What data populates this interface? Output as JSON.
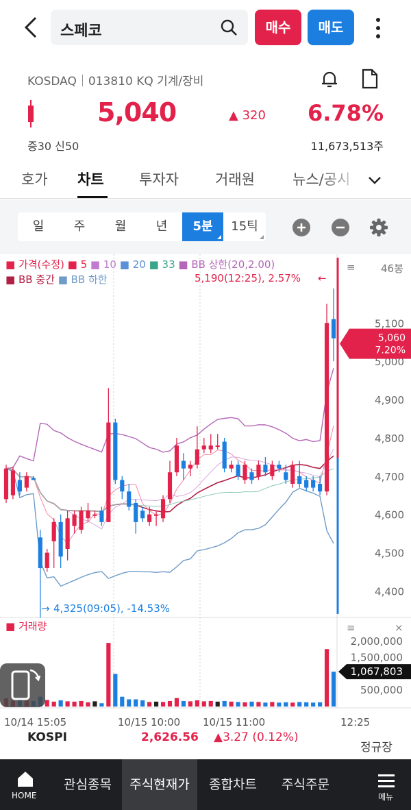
{
  "header": {
    "search_value": "스페코",
    "buy_label": "매수",
    "sell_label": "매도"
  },
  "stock": {
    "info_line": "KOSDAQ｜013810 KQ 기계/장비",
    "price": "5,040",
    "change": "▲ 320",
    "change_pct": "6.78%",
    "margin_info": "증30  신50",
    "total_volume": "11,673,513주"
  },
  "tabs": [
    "호가",
    "차트",
    "투자자",
    "거래원",
    "뉴스/공시"
  ],
  "periods": [
    "일",
    "주",
    "월",
    "년",
    "5분",
    "15틱"
  ],
  "colors": {
    "up": "#e2224b",
    "down": "#1c7fe0",
    "accent": "#1c7fe0"
  },
  "chart_data": {
    "type": "candlestick",
    "interval": "5분",
    "legend": {
      "price": "가격(수정)",
      "ma": [
        "5",
        "10",
        "20",
        "33"
      ],
      "bb_upper": "BB 상한(20,2.00)",
      "bb_mid": "BB 중간",
      "bb_lower": "BB 하한"
    },
    "indicator_count": "46봉",
    "high_annotation": "5,190(12:25), 2.57%",
    "low_annotation": "4,325(09:05), -14.53%",
    "current_tag": {
      "price": "5,060",
      "pct": "7.20%"
    },
    "y_ticks": [
      "5,100",
      "5,000",
      "4,900",
      "4,800",
      "4,700",
      "4,600",
      "4,500",
      "4,400"
    ],
    "ylim": [
      4340,
      5190
    ],
    "x_ticks": [
      "10/14 15:05",
      "10/15 10:00",
      "10/15 11:00",
      "12:25"
    ],
    "candles": [
      {
        "o": 4640,
        "c": 4720,
        "h": 4730,
        "l": 4630
      },
      {
        "o": 4650,
        "c": 4715,
        "h": 4725,
        "l": 4640
      },
      {
        "o": 4690,
        "c": 4660,
        "h": 4710,
        "l": 4650
      },
      {
        "o": 4670,
        "c": 4700,
        "h": 4710,
        "l": 4660
      },
      {
        "o": 4695,
        "c": 4690,
        "h": 4700,
        "l": 4690
      },
      {
        "o": 4540,
        "c": 4460,
        "h": 4560,
        "l": 4330
      },
      {
        "o": 4460,
        "c": 4500,
        "h": 4510,
        "l": 4450
      },
      {
        "o": 4530,
        "c": 4580,
        "h": 4590,
        "l": 4460
      },
      {
        "o": 4580,
        "c": 4490,
        "h": 4600,
        "l": 4460
      },
      {
        "o": 4510,
        "c": 4590,
        "h": 4610,
        "l": 4480
      },
      {
        "o": 4570,
        "c": 4600,
        "h": 4610,
        "l": 4550
      },
      {
        "o": 4560,
        "c": 4610,
        "h": 4620,
        "l": 4550
      },
      {
        "o": 4590,
        "c": 4610,
        "h": 4630,
        "l": 4580
      },
      {
        "o": 4600,
        "c": 4600,
        "h": 4610,
        "l": 4590
      },
      {
        "o": 4610,
        "c": 4580,
        "h": 4620,
        "l": 4570
      },
      {
        "o": 4580,
        "c": 4840,
        "h": 4930,
        "l": 4580
      },
      {
        "o": 4840,
        "c": 4690,
        "h": 4850,
        "l": 4680
      },
      {
        "o": 4690,
        "c": 4660,
        "h": 4700,
        "l": 4640
      },
      {
        "o": 4660,
        "c": 4620,
        "h": 4680,
        "l": 4610
      },
      {
        "o": 4630,
        "c": 4580,
        "h": 4640,
        "l": 4550
      },
      {
        "o": 4610,
        "c": 4590,
        "h": 4620,
        "l": 4580
      },
      {
        "o": 4580,
        "c": 4600,
        "h": 4620,
        "l": 4570
      },
      {
        "o": 4600,
        "c": 4600,
        "h": 4610,
        "l": 4570
      },
      {
        "o": 4590,
        "c": 4640,
        "h": 4650,
        "l": 4580
      },
      {
        "o": 4640,
        "c": 4710,
        "h": 4740,
        "l": 4630
      },
      {
        "o": 4710,
        "c": 4780,
        "h": 4800,
        "l": 4700
      },
      {
        "o": 4740,
        "c": 4720,
        "h": 4760,
        "l": 4690
      },
      {
        "o": 4720,
        "c": 4730,
        "h": 4740,
        "l": 4700
      },
      {
        "o": 4730,
        "c": 4770,
        "h": 4830,
        "l": 4720
      },
      {
        "o": 4770,
        "c": 4780,
        "h": 4800,
        "l": 4760
      },
      {
        "o": 4770,
        "c": 4780,
        "h": 4810,
        "l": 4760
      },
      {
        "o": 4780,
        "c": 4780,
        "h": 4810,
        "l": 4770
      },
      {
        "o": 4790,
        "c": 4720,
        "h": 4800,
        "l": 4710
      },
      {
        "o": 4720,
        "c": 4730,
        "h": 4740,
        "l": 4710
      },
      {
        "o": 4730,
        "c": 4700,
        "h": 4740,
        "l": 4690
      },
      {
        "o": 4690,
        "c": 4730,
        "h": 4740,
        "l": 4680
      },
      {
        "o": 4710,
        "c": 4690,
        "h": 4720,
        "l": 4680
      },
      {
        "o": 4700,
        "c": 4730,
        "h": 4740,
        "l": 4690
      },
      {
        "o": 4730,
        "c": 4710,
        "h": 4750,
        "l": 4700
      },
      {
        "o": 4700,
        "c": 4730,
        "h": 4740,
        "l": 4690
      },
      {
        "o": 4730,
        "c": 4720,
        "h": 4740,
        "l": 4710
      },
      {
        "o": 4710,
        "c": 4690,
        "h": 4730,
        "l": 4680
      },
      {
        "o": 4680,
        "c": 4730,
        "h": 4740,
        "l": 4670
      },
      {
        "o": 4700,
        "c": 4680,
        "h": 4740,
        "l": 4670
      },
      {
        "o": 4690,
        "c": 4670,
        "h": 4700,
        "l": 4660
      },
      {
        "o": 4690,
        "c": 4670,
        "h": 4700,
        "l": 4660
      },
      {
        "o": 4680,
        "c": 4660,
        "h": 4700,
        "l": 4650
      },
      {
        "o": 4660,
        "c": 5100,
        "h": 5150,
        "l": 4650
      },
      {
        "o": 5110,
        "c": 5060,
        "h": 5190,
        "l": 5000
      }
    ],
    "volume": {
      "label": "거래량",
      "y_ticks": [
        "2,000,000",
        "1,500,000",
        "500,000"
      ],
      "current": "1,067,803",
      "ylim": [
        0,
        2100000
      ],
      "values": [
        250000,
        180000,
        200000,
        190000,
        170000,
        300000,
        200000,
        150000,
        190000,
        160000,
        150000,
        170000,
        130000,
        160000,
        100000,
        1950000,
        1000000,
        300000,
        220000,
        220000,
        190000,
        140000,
        150000,
        140000,
        170000,
        260000,
        170000,
        160000,
        190000,
        160000,
        170000,
        150000,
        170000,
        150000,
        140000,
        130000,
        150000,
        140000,
        120000,
        140000,
        120000,
        130000,
        120000,
        140000,
        130000,
        120000,
        130000,
        1760000,
        1067803
      ]
    }
  },
  "kospi": {
    "label": "KOSPI",
    "value": "2,626.56",
    "change": "▲3.27 (0.12%)",
    "status": "정규장"
  },
  "bottom_nav": {
    "home": "HOME",
    "items": [
      "관심종목",
      "주식현재가",
      "종합차트",
      "주식주문"
    ],
    "menu": "메뉴"
  }
}
